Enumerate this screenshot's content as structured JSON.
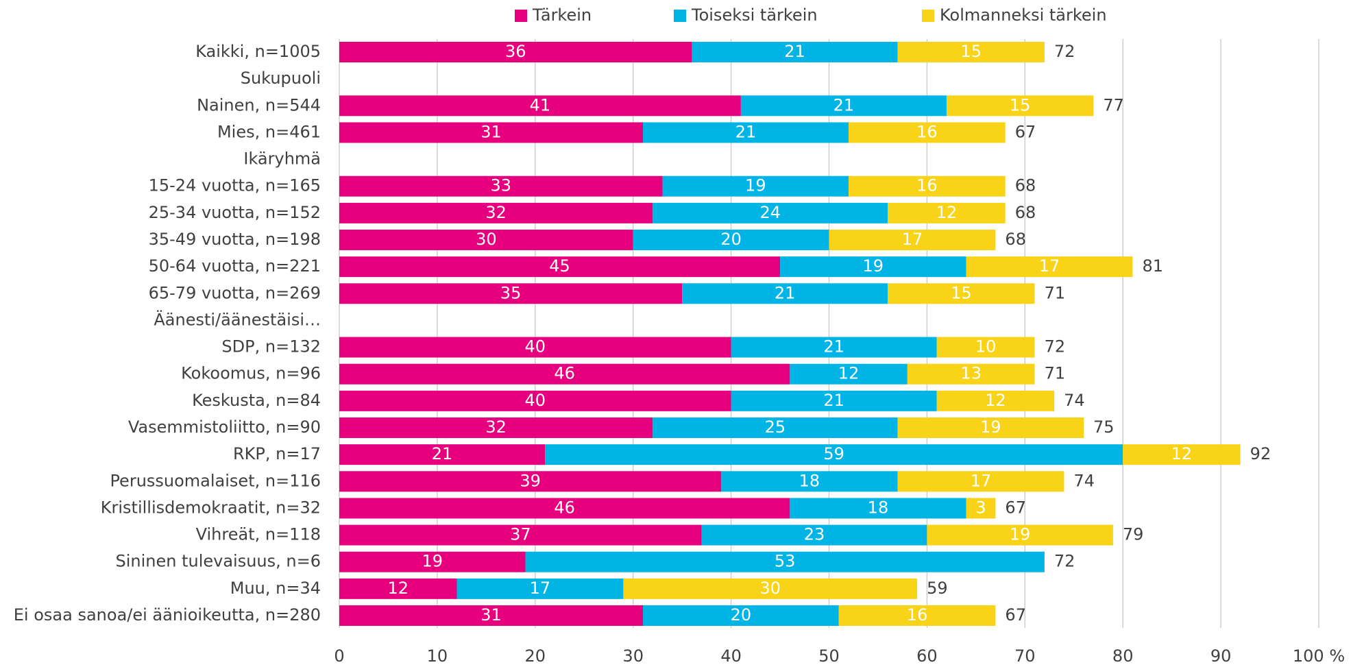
{
  "chart_data": {
    "type": "stacked-bar-horizontal",
    "categories": [
      "Kaikki, n=1005",
      "Sukupuoli",
      "Nainen, n=544",
      "Mies, n=461",
      "Ikäryhmä",
      "15-24 vuotta, n=165",
      "25-34 vuotta, n=152",
      "35-49 vuotta, n=198",
      "50-64 vuotta, n=221",
      "65-79 vuotta, n=269",
      "Äänesti/äänestäisi…",
      "SDP, n=132",
      "Kokoomus, n=96",
      "Keskusta, n=84",
      "Vasemmistoliitto, n=90",
      "RKP, n=17",
      "Perussuomalaiset, n=116",
      "Kristillisdemokraatit, n=32",
      "Vihreät, n=118",
      "Sininen tulevaisuus, n=6",
      "Muu, n=34",
      "Ei osaa sanoa/ei äänioikeutta, n=280"
    ],
    "series": [
      {
        "name": "Tärkein",
        "color": "#e6007e",
        "values": [
          36,
          null,
          41,
          31,
          null,
          33,
          32,
          30,
          45,
          35,
          null,
          40,
          46,
          40,
          32,
          21,
          39,
          46,
          37,
          19,
          12,
          31
        ]
      },
      {
        "name": "Toiseksi tärkein",
        "color": "#00b4e6",
        "values": [
          21,
          null,
          21,
          21,
          null,
          19,
          24,
          20,
          19,
          21,
          null,
          21,
          12,
          21,
          25,
          59,
          18,
          18,
          23,
          53,
          17,
          20
        ]
      },
      {
        "name": "Kolmanneksi tärkein",
        "color": "#f9d318",
        "values": [
          15,
          null,
          15,
          16,
          null,
          16,
          12,
          17,
          17,
          15,
          null,
          10,
          13,
          12,
          19,
          12,
          17,
          3,
          19,
          null,
          30,
          16
        ]
      }
    ],
    "totals": [
      72,
      null,
      77,
      67,
      null,
      68,
      68,
      68,
      81,
      71,
      null,
      72,
      71,
      74,
      75,
      92,
      74,
      67,
      79,
      72,
      59,
      67
    ],
    "xlim": [
      0,
      100
    ],
    "xticks": [
      0,
      10,
      20,
      30,
      40,
      50,
      60,
      70,
      80,
      90,
      {
        "value": 100,
        "label": "100 %"
      }
    ],
    "grid": true
  }
}
